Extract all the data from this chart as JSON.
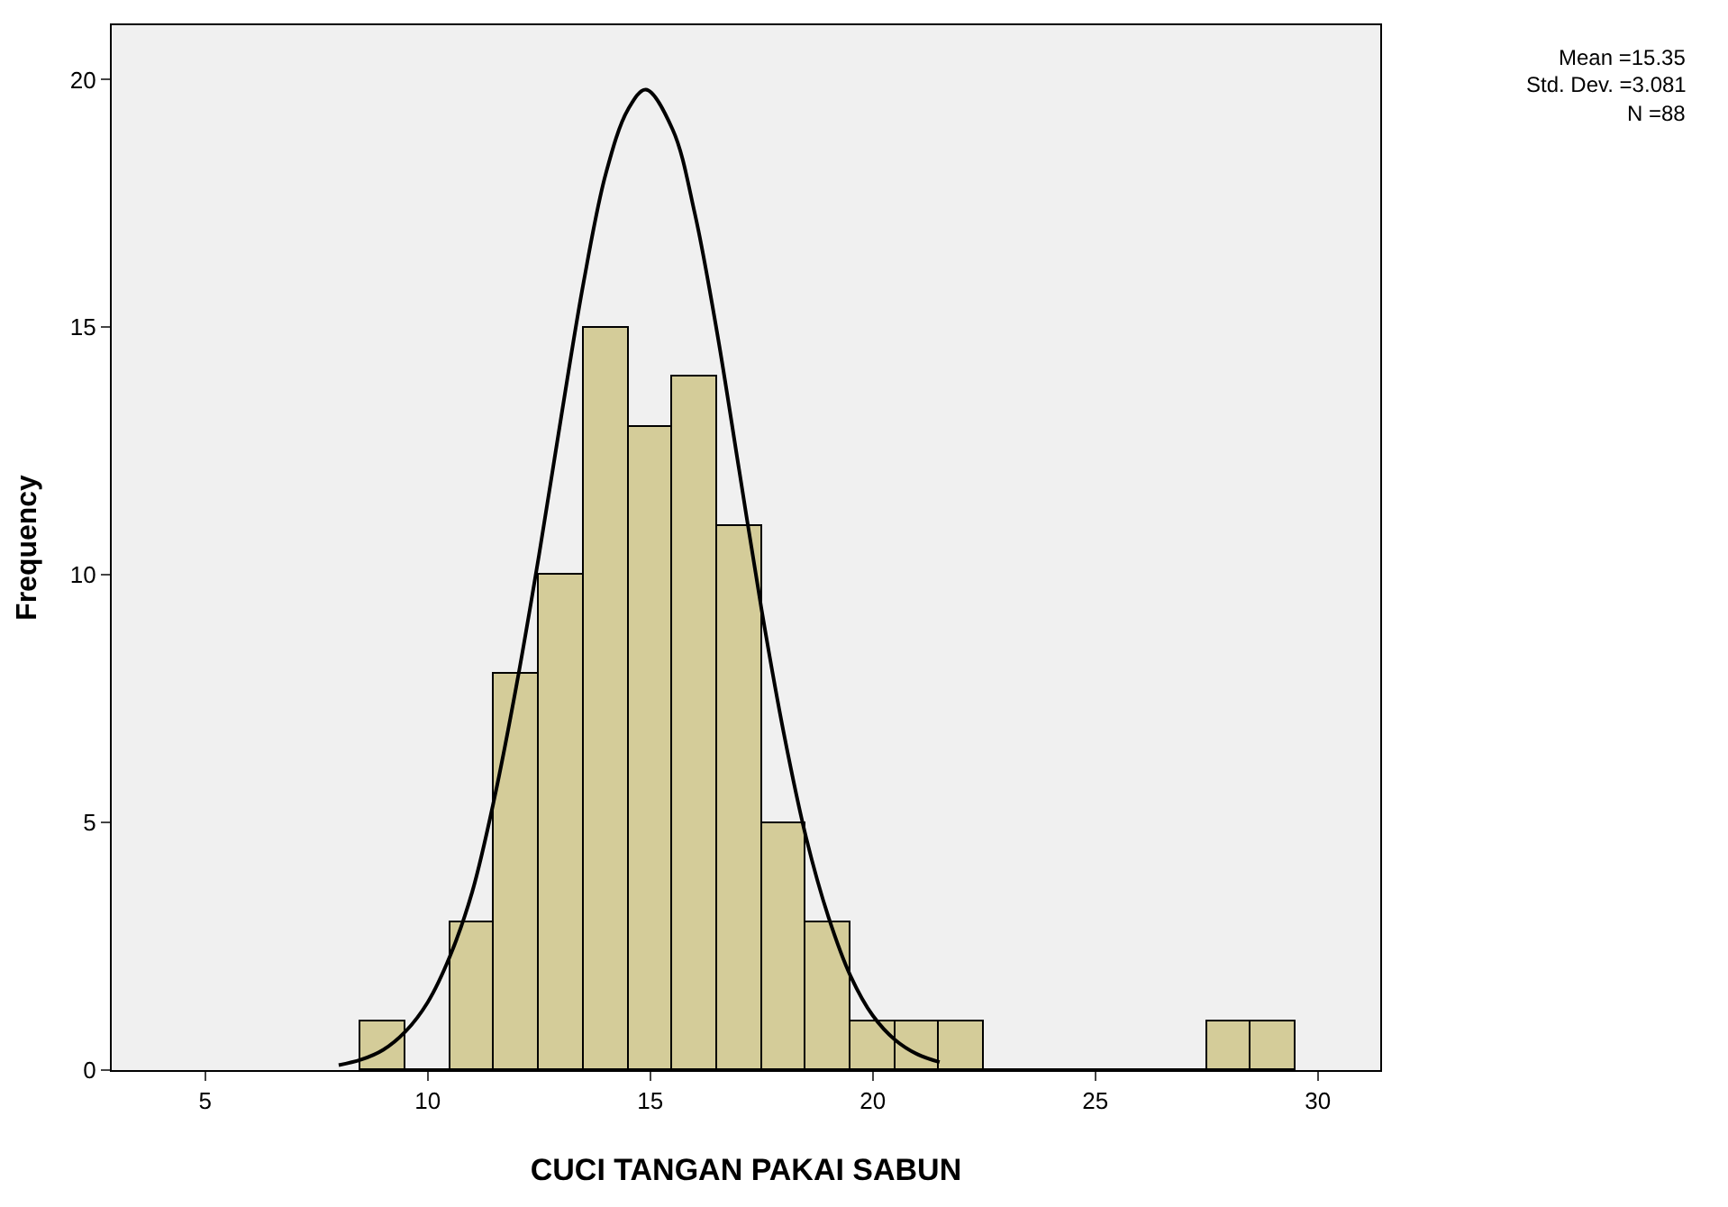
{
  "chart_data": {
    "type": "histogram",
    "xlabel": "CUCI TANGAN PAKAI SABUN",
    "ylabel": "Frequency",
    "annotations": [
      "Mean =15.35",
      "Std. Dev. =3.081",
      "N =88"
    ],
    "xlim": [
      2.9,
      31.4
    ],
    "xticks": [
      5,
      10,
      15,
      20,
      25,
      30
    ],
    "ylim": [
      0,
      21.1
    ],
    "yticks": [
      0,
      5,
      10,
      15,
      20
    ],
    "grid": false,
    "series": [
      {
        "color": "#d4cc99",
        "bins": [
          8.5,
          9.5,
          10.5,
          11.5,
          12.5,
          13.5,
          14.5,
          15.5,
          16.5,
          17.5,
          18.5,
          19.5,
          20.5,
          21.5,
          22.5,
          23.5,
          24.5,
          25.5,
          26.5,
          27.5,
          28.5,
          29.5
        ],
        "values": [
          1,
          0,
          3,
          8,
          10,
          15,
          13,
          14,
          11,
          5,
          3,
          1,
          1,
          1,
          0,
          0,
          0,
          0,
          0,
          1,
          1
        ]
      },
      {
        "type": "line",
        "color": "#000000",
        "x": [
          8,
          8.5,
          9,
          9.5,
          10,
          10.5,
          11,
          11.5,
          12,
          12.5,
          13,
          13.5,
          14,
          14.5,
          14.9,
          15.5,
          16,
          16.5,
          17,
          17.5,
          18,
          18.5,
          19,
          19.5,
          20,
          20.5,
          21,
          21.5
        ],
        "values": [
          0.1,
          0.21,
          0.41,
          0.78,
          1.37,
          2.3,
          3.6,
          5.5,
          7.8,
          10.4,
          13.2,
          15.9,
          18.1,
          19.4,
          19.8,
          19.0,
          17.3,
          14.9,
          12.1,
          9.3,
          6.8,
          4.7,
          3.1,
          1.9,
          1.1,
          0.61,
          0.32,
          0.16
        ]
      }
    ]
  }
}
